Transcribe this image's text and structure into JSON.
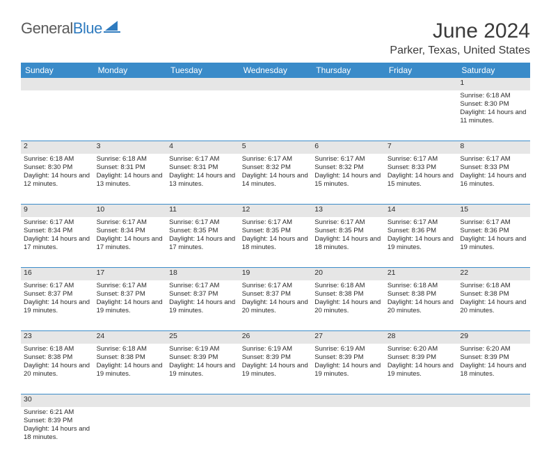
{
  "brand": {
    "name_a": "General",
    "name_b": "Blue"
  },
  "title": "June 2024",
  "location": "Parker, Texas, United States",
  "colors": {
    "header_bg": "#3a8bc9",
    "header_fg": "#ffffff",
    "daynum_bg": "#e6e6e6",
    "border": "#3a8bc9",
    "text": "#2a2a2a",
    "logo_gray": "#5a5a5a",
    "logo_blue": "#2f7bbf"
  },
  "weekdays": [
    "Sunday",
    "Monday",
    "Tuesday",
    "Wednesday",
    "Thursday",
    "Friday",
    "Saturday"
  ],
  "days": {
    "1": {
      "sunrise": "6:18 AM",
      "sunset": "8:30 PM",
      "daylight": "14 hours and 11 minutes."
    },
    "2": {
      "sunrise": "6:18 AM",
      "sunset": "8:30 PM",
      "daylight": "14 hours and 12 minutes."
    },
    "3": {
      "sunrise": "6:18 AM",
      "sunset": "8:31 PM",
      "daylight": "14 hours and 13 minutes."
    },
    "4": {
      "sunrise": "6:17 AM",
      "sunset": "8:31 PM",
      "daylight": "14 hours and 13 minutes."
    },
    "5": {
      "sunrise": "6:17 AM",
      "sunset": "8:32 PM",
      "daylight": "14 hours and 14 minutes."
    },
    "6": {
      "sunrise": "6:17 AM",
      "sunset": "8:32 PM",
      "daylight": "14 hours and 15 minutes."
    },
    "7": {
      "sunrise": "6:17 AM",
      "sunset": "8:33 PM",
      "daylight": "14 hours and 15 minutes."
    },
    "8": {
      "sunrise": "6:17 AM",
      "sunset": "8:33 PM",
      "daylight": "14 hours and 16 minutes."
    },
    "9": {
      "sunrise": "6:17 AM",
      "sunset": "8:34 PM",
      "daylight": "14 hours and 17 minutes."
    },
    "10": {
      "sunrise": "6:17 AM",
      "sunset": "8:34 PM",
      "daylight": "14 hours and 17 minutes."
    },
    "11": {
      "sunrise": "6:17 AM",
      "sunset": "8:35 PM",
      "daylight": "14 hours and 17 minutes."
    },
    "12": {
      "sunrise": "6:17 AM",
      "sunset": "8:35 PM",
      "daylight": "14 hours and 18 minutes."
    },
    "13": {
      "sunrise": "6:17 AM",
      "sunset": "8:35 PM",
      "daylight": "14 hours and 18 minutes."
    },
    "14": {
      "sunrise": "6:17 AM",
      "sunset": "8:36 PM",
      "daylight": "14 hours and 19 minutes."
    },
    "15": {
      "sunrise": "6:17 AM",
      "sunset": "8:36 PM",
      "daylight": "14 hours and 19 minutes."
    },
    "16": {
      "sunrise": "6:17 AM",
      "sunset": "8:37 PM",
      "daylight": "14 hours and 19 minutes."
    },
    "17": {
      "sunrise": "6:17 AM",
      "sunset": "8:37 PM",
      "daylight": "14 hours and 19 minutes."
    },
    "18": {
      "sunrise": "6:17 AM",
      "sunset": "8:37 PM",
      "daylight": "14 hours and 19 minutes."
    },
    "19": {
      "sunrise": "6:17 AM",
      "sunset": "8:37 PM",
      "daylight": "14 hours and 20 minutes."
    },
    "20": {
      "sunrise": "6:18 AM",
      "sunset": "8:38 PM",
      "daylight": "14 hours and 20 minutes."
    },
    "21": {
      "sunrise": "6:18 AM",
      "sunset": "8:38 PM",
      "daylight": "14 hours and 20 minutes."
    },
    "22": {
      "sunrise": "6:18 AM",
      "sunset": "8:38 PM",
      "daylight": "14 hours and 20 minutes."
    },
    "23": {
      "sunrise": "6:18 AM",
      "sunset": "8:38 PM",
      "daylight": "14 hours and 20 minutes."
    },
    "24": {
      "sunrise": "6:18 AM",
      "sunset": "8:38 PM",
      "daylight": "14 hours and 19 minutes."
    },
    "25": {
      "sunrise": "6:19 AM",
      "sunset": "8:39 PM",
      "daylight": "14 hours and 19 minutes."
    },
    "26": {
      "sunrise": "6:19 AM",
      "sunset": "8:39 PM",
      "daylight": "14 hours and 19 minutes."
    },
    "27": {
      "sunrise": "6:19 AM",
      "sunset": "8:39 PM",
      "daylight": "14 hours and 19 minutes."
    },
    "28": {
      "sunrise": "6:20 AM",
      "sunset": "8:39 PM",
      "daylight": "14 hours and 19 minutes."
    },
    "29": {
      "sunrise": "6:20 AM",
      "sunset": "8:39 PM",
      "daylight": "14 hours and 18 minutes."
    },
    "30": {
      "sunrise": "6:21 AM",
      "sunset": "8:39 PM",
      "daylight": "14 hours and 18 minutes."
    }
  },
  "labels": {
    "sunrise": "Sunrise:",
    "sunset": "Sunset:",
    "daylight": "Daylight:"
  },
  "grid": [
    [
      null,
      null,
      null,
      null,
      null,
      null,
      1
    ],
    [
      2,
      3,
      4,
      5,
      6,
      7,
      8
    ],
    [
      9,
      10,
      11,
      12,
      13,
      14,
      15
    ],
    [
      16,
      17,
      18,
      19,
      20,
      21,
      22
    ],
    [
      23,
      24,
      25,
      26,
      27,
      28,
      29
    ],
    [
      30,
      null,
      null,
      null,
      null,
      null,
      null
    ]
  ]
}
